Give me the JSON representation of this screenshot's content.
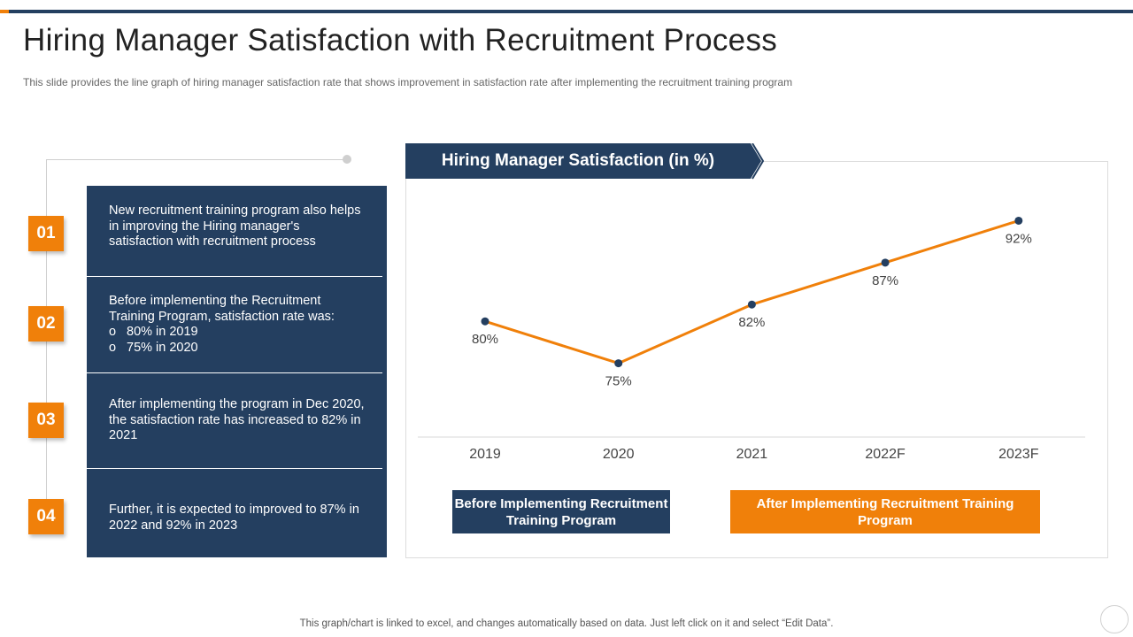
{
  "slide": {
    "title": "Hiring Manager Satisfaction with Recruitment Process",
    "subtitle": "This slide provides  the line graph of hiring manager satisfaction rate that shows improvement  in satisfaction rate after implementing the recruitment training program",
    "footer": "This graph/chart is linked to excel,  and changes automatically based on data. Just left click on it and select “Edit Data”."
  },
  "steps": [
    {
      "number": "01",
      "text": "New recruitment training program also helps in improving the Hiring manager's satisfaction with recruitment process"
    },
    {
      "number": "02",
      "text": "Before implementing the Recruitment Training Program, satisfaction rate was:",
      "bullets": [
        "80% in 2019",
        "75% in 2020"
      ]
    },
    {
      "number": "03",
      "text": "After implementing the program in Dec 2020, the satisfaction rate has increased to 82% in 2021"
    },
    {
      "number": "04",
      "text": "Further, it is expected to improved to 87% in 2022 and 92% in 2023"
    }
  ],
  "chart_header": "Hiring Manager Satisfaction (in %)",
  "legend": {
    "before": "Before Implementing Recruitment Training Program",
    "after": "After Implementing Recruitment Training Program"
  },
  "colors": {
    "navy": "#243f60",
    "orange": "#f0800a",
    "marker": "#243f60"
  },
  "chart_data": {
    "type": "line",
    "title": "Hiring Manager Satisfaction (in %)",
    "categories": [
      "2019",
      "2020",
      "2021",
      "2022F",
      "2023F"
    ],
    "series": [
      {
        "values": [
          80,
          75,
          82,
          87,
          92
        ],
        "labels": [
          "80%",
          "75%",
          "82%",
          "87%",
          "92%"
        ]
      }
    ],
    "ylim": [
      70,
      95
    ],
    "grid": false,
    "legend_position": "bottom"
  }
}
